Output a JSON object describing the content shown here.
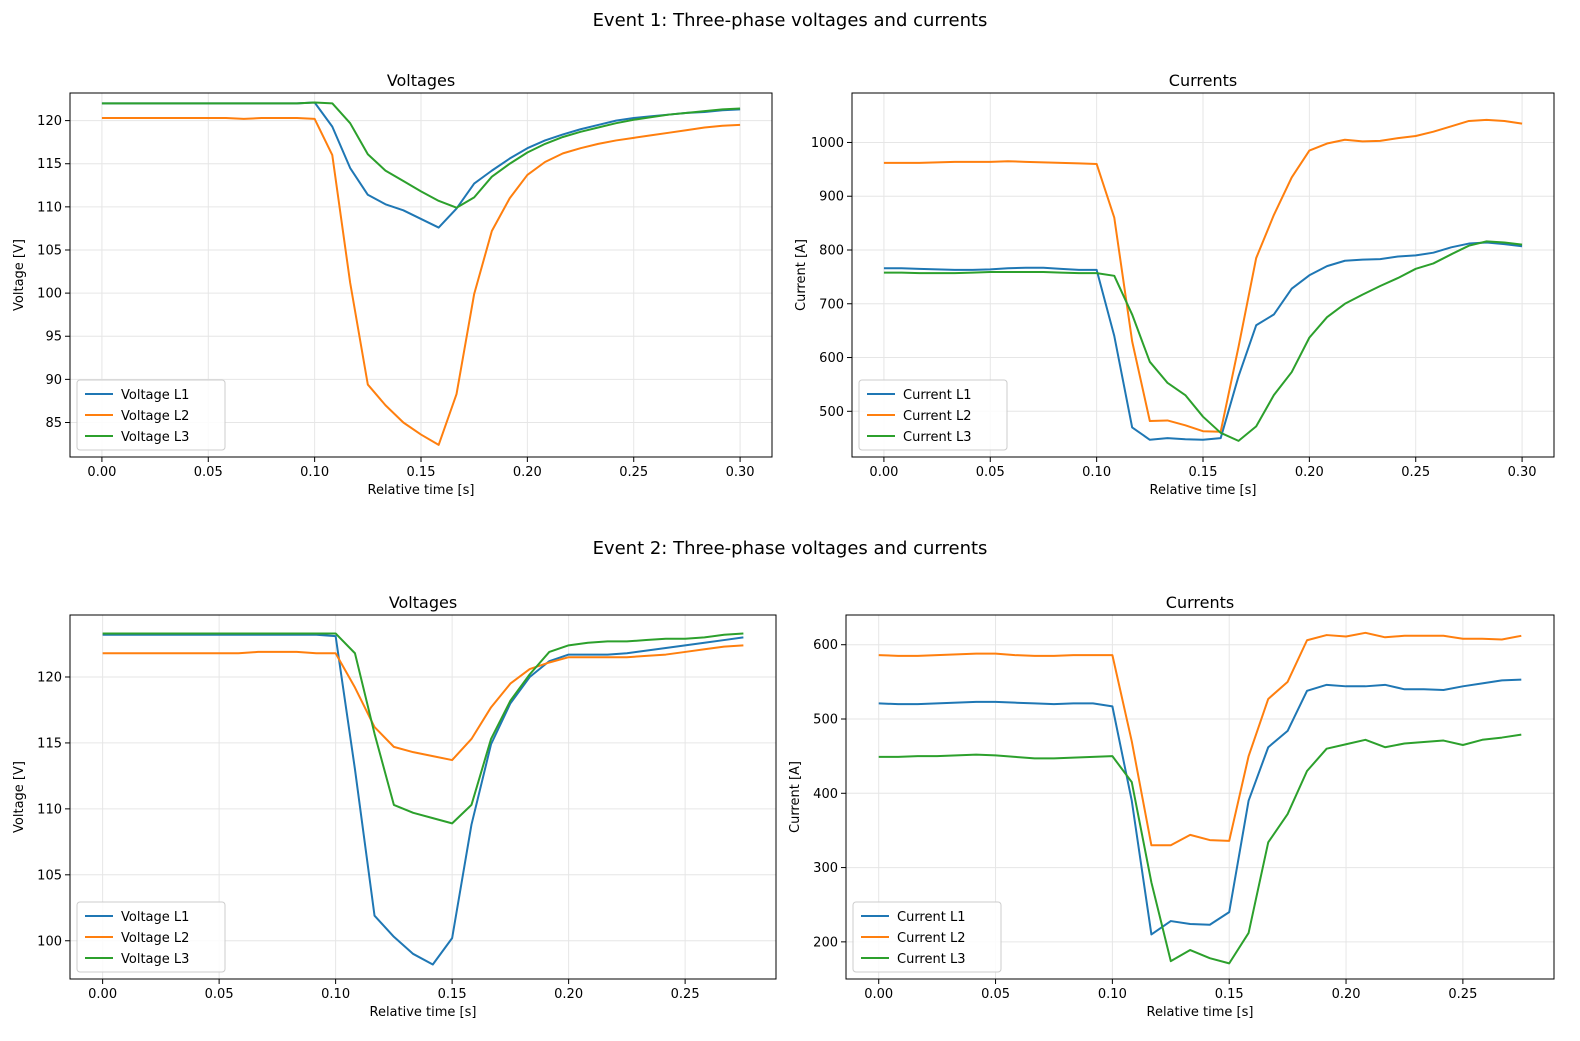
{
  "figure": {
    "event1_title": "Event 1: Three-phase voltages and currents",
    "event2_title": "Event 2: Three-phase voltages and currents"
  },
  "colors": {
    "L1": "#1f77b4",
    "L2": "#ff7f0e",
    "L3": "#2ca02c"
  },
  "chart_data": [
    {
      "type": "line",
      "title": "Voltages",
      "xlabel": "Relative time [s]",
      "ylabel": "Voltage [V]",
      "xlim": [
        -0.015,
        0.315
      ],
      "ylim": [
        81,
        123.2
      ],
      "xticks": [
        0.0,
        0.05,
        0.1,
        0.15,
        0.2,
        0.25,
        0.3
      ],
      "xtick_labels": [
        "0.00",
        "0.05",
        "0.10",
        "0.15",
        "0.20",
        "0.25",
        "0.30"
      ],
      "yticks": [
        85,
        90,
        95,
        100,
        105,
        110,
        115,
        120
      ],
      "ytick_labels": [
        "85",
        "90",
        "95",
        "100",
        "105",
        "110",
        "115",
        "120"
      ],
      "grid": true,
      "legend": "lower-left",
      "x": [
        0.0,
        0.0083,
        0.0167,
        0.025,
        0.0333,
        0.0417,
        0.05,
        0.0583,
        0.0667,
        0.075,
        0.0833,
        0.0917,
        0.1,
        0.1083,
        0.1167,
        0.125,
        0.1333,
        0.1417,
        0.15,
        0.1583,
        0.1667,
        0.175,
        0.1833,
        0.1917,
        0.2,
        0.2083,
        0.2167,
        0.225,
        0.2333,
        0.2417,
        0.25,
        0.2583,
        0.2667,
        0.275,
        0.2833,
        0.2917,
        0.3
      ],
      "series": [
        {
          "name": "Voltage L1",
          "color": "#1f77b4",
          "values": [
            122.0,
            122.0,
            122.0,
            122.0,
            122.0,
            122.0,
            122.0,
            122.0,
            122.0,
            122.0,
            122.0,
            122.0,
            122.1,
            119.3,
            114.5,
            111.4,
            110.3,
            109.6,
            108.6,
            107.6,
            109.8,
            112.7,
            114.2,
            115.6,
            116.8,
            117.7,
            118.4,
            119.0,
            119.5,
            120.0,
            120.3,
            120.5,
            120.7,
            120.9,
            121.0,
            121.2,
            121.3
          ]
        },
        {
          "name": "Voltage L2",
          "color": "#ff7f0e",
          "values": [
            120.3,
            120.3,
            120.3,
            120.3,
            120.3,
            120.3,
            120.3,
            120.3,
            120.2,
            120.3,
            120.3,
            120.3,
            120.2,
            116.0,
            101.2,
            89.4,
            87.0,
            85.0,
            83.6,
            82.4,
            88.3,
            99.9,
            107.2,
            111.0,
            113.7,
            115.2,
            116.2,
            116.8,
            117.3,
            117.7,
            118.0,
            118.3,
            118.6,
            118.9,
            119.2,
            119.4,
            119.5
          ]
        },
        {
          "name": "Voltage L3",
          "color": "#2ca02c",
          "values": [
            122.0,
            122.0,
            122.0,
            122.0,
            122.0,
            122.0,
            122.0,
            122.0,
            122.0,
            122.0,
            122.0,
            122.0,
            122.1,
            122.0,
            119.7,
            116.1,
            114.2,
            113.0,
            111.8,
            110.7,
            109.9,
            111.1,
            113.5,
            115.0,
            116.3,
            117.3,
            118.1,
            118.7,
            119.2,
            119.7,
            120.1,
            120.4,
            120.7,
            120.9,
            121.1,
            121.3,
            121.4
          ]
        }
      ]
    },
    {
      "type": "line",
      "title": "Currents",
      "xlabel": "Relative time [s]",
      "ylabel": "Current [A]",
      "xlim": [
        -0.015,
        0.315
      ],
      "ylim": [
        415,
        1092
      ],
      "xticks": [
        0.0,
        0.05,
        0.1,
        0.15,
        0.2,
        0.25,
        0.3
      ],
      "xtick_labels": [
        "0.00",
        "0.05",
        "0.10",
        "0.15",
        "0.20",
        "0.25",
        "0.30"
      ],
      "yticks": [
        500,
        600,
        700,
        800,
        900,
        1000
      ],
      "ytick_labels": [
        "500",
        "600",
        "700",
        "800",
        "900",
        "1000"
      ],
      "grid": true,
      "legend": "lower-left",
      "x": [
        0.0,
        0.0083,
        0.0167,
        0.025,
        0.0333,
        0.0417,
        0.05,
        0.0583,
        0.0667,
        0.075,
        0.0833,
        0.0917,
        0.1,
        0.1083,
        0.1167,
        0.125,
        0.1333,
        0.1417,
        0.15,
        0.1583,
        0.1667,
        0.175,
        0.1833,
        0.1917,
        0.2,
        0.2083,
        0.2167,
        0.225,
        0.2333,
        0.2417,
        0.25,
        0.2583,
        0.2667,
        0.275,
        0.2833,
        0.2917,
        0.3
      ],
      "series": [
        {
          "name": "Current L1",
          "color": "#1f77b4",
          "values": [
            766,
            766,
            765,
            764,
            763,
            763,
            764,
            766,
            767,
            767,
            765,
            763,
            763,
            640,
            470,
            447,
            450,
            448,
            447,
            450,
            565,
            660,
            680,
            728,
            753,
            770,
            780,
            782,
            783,
            788,
            790,
            795,
            805,
            812,
            814,
            811,
            807
          ]
        },
        {
          "name": "Current L2",
          "color": "#ff7f0e",
          "values": [
            962,
            962,
            962,
            963,
            964,
            964,
            964,
            965,
            964,
            963,
            962,
            961,
            960,
            860,
            630,
            482,
            483,
            474,
            463,
            462,
            620,
            785,
            865,
            935,
            985,
            998,
            1005,
            1002,
            1003,
            1008,
            1012,
            1020,
            1030,
            1040,
            1042,
            1040,
            1035
          ]
        },
        {
          "name": "Current L3",
          "color": "#2ca02c",
          "values": [
            758,
            758,
            757,
            757,
            757,
            758,
            759,
            759,
            759,
            759,
            758,
            757,
            757,
            752,
            680,
            592,
            553,
            530,
            490,
            460,
            445,
            472,
            530,
            573,
            637,
            675,
            700,
            717,
            733,
            748,
            765,
            775,
            792,
            808,
            816,
            814,
            810
          ]
        }
      ]
    },
    {
      "type": "line",
      "title": "Voltages",
      "xlabel": "Relative time [s]",
      "ylabel": "Voltage [V]",
      "xlim": [
        -0.014,
        0.289
      ],
      "ylim": [
        97.1,
        124.7
      ],
      "xticks": [
        0.0,
        0.05,
        0.1,
        0.15,
        0.2,
        0.25
      ],
      "xtick_labels": [
        "0.00",
        "0.05",
        "0.10",
        "0.15",
        "0.20",
        "0.25"
      ],
      "yticks": [
        100,
        105,
        110,
        115,
        120
      ],
      "ytick_labels": [
        "100",
        "105",
        "110",
        "115",
        "120"
      ],
      "grid": true,
      "legend": "lower-left",
      "x": [
        0.0,
        0.0083,
        0.0167,
        0.025,
        0.0333,
        0.0417,
        0.05,
        0.0583,
        0.0667,
        0.075,
        0.0833,
        0.0917,
        0.1,
        0.1083,
        0.1167,
        0.125,
        0.1333,
        0.1417,
        0.15,
        0.1583,
        0.1667,
        0.175,
        0.1833,
        0.1917,
        0.2,
        0.2083,
        0.2167,
        0.225,
        0.2333,
        0.2417,
        0.25,
        0.2583,
        0.2667,
        0.275
      ],
      "series": [
        {
          "name": "Voltage L1",
          "color": "#1f77b4",
          "values": [
            123.2,
            123.2,
            123.2,
            123.2,
            123.2,
            123.2,
            123.2,
            123.2,
            123.2,
            123.2,
            123.2,
            123.2,
            123.1,
            113.0,
            101.9,
            100.3,
            99.0,
            98.2,
            100.2,
            108.8,
            114.9,
            118.0,
            120.0,
            121.2,
            121.7,
            121.7,
            121.7,
            121.8,
            122.0,
            122.2,
            122.4,
            122.6,
            122.8,
            123.0
          ]
        },
        {
          "name": "Voltage L2",
          "color": "#ff7f0e",
          "values": [
            121.8,
            121.8,
            121.8,
            121.8,
            121.8,
            121.8,
            121.8,
            121.8,
            121.9,
            121.9,
            121.9,
            121.8,
            121.8,
            119.2,
            116.2,
            114.7,
            114.3,
            114.0,
            113.7,
            115.3,
            117.7,
            119.5,
            120.6,
            121.1,
            121.5,
            121.5,
            121.5,
            121.5,
            121.6,
            121.7,
            121.9,
            122.1,
            122.3,
            122.4
          ]
        },
        {
          "name": "Voltage L3",
          "color": "#2ca02c",
          "values": [
            123.3,
            123.3,
            123.3,
            123.3,
            123.3,
            123.3,
            123.3,
            123.3,
            123.3,
            123.3,
            123.3,
            123.3,
            123.3,
            121.8,
            115.7,
            110.3,
            109.7,
            109.3,
            108.9,
            110.3,
            115.3,
            118.2,
            120.2,
            121.9,
            122.4,
            122.6,
            122.7,
            122.7,
            122.8,
            122.9,
            122.9,
            123.0,
            123.2,
            123.3
          ]
        }
      ]
    },
    {
      "type": "line",
      "title": "Currents",
      "xlabel": "Relative time [s]",
      "ylabel": "Current [A]",
      "xlim": [
        -0.014,
        0.289
      ],
      "ylim": [
        150,
        640
      ],
      "xticks": [
        0.0,
        0.05,
        0.1,
        0.15,
        0.2,
        0.25
      ],
      "xtick_labels": [
        "0.00",
        "0.05",
        "0.10",
        "0.15",
        "0.20",
        "0.25"
      ],
      "yticks": [
        200,
        300,
        400,
        500,
        600
      ],
      "ytick_labels": [
        "200",
        "300",
        "400",
        "500",
        "600"
      ],
      "grid": true,
      "legend": "lower-left",
      "x": [
        0.0,
        0.0083,
        0.0167,
        0.025,
        0.0333,
        0.0417,
        0.05,
        0.0583,
        0.0667,
        0.075,
        0.0833,
        0.0917,
        0.1,
        0.1083,
        0.1167,
        0.125,
        0.1333,
        0.1417,
        0.15,
        0.1583,
        0.1667,
        0.175,
        0.1833,
        0.1917,
        0.2,
        0.2083,
        0.2167,
        0.225,
        0.2333,
        0.2417,
        0.25,
        0.2583,
        0.2667,
        0.275
      ],
      "series": [
        {
          "name": "Current L1",
          "color": "#1f77b4",
          "values": [
            521,
            520,
            520,
            521,
            522,
            523,
            523,
            522,
            521,
            520,
            521,
            521,
            517,
            390,
            210,
            228,
            224,
            223,
            240,
            390,
            462,
            484,
            538,
            546,
            544,
            544,
            546,
            540,
            540,
            539,
            544,
            548,
            552,
            553
          ]
        },
        {
          "name": "Current L2",
          "color": "#ff7f0e",
          "values": [
            586,
            585,
            585,
            586,
            587,
            588,
            588,
            586,
            585,
            585,
            586,
            586,
            586,
            470,
            330,
            330,
            344,
            337,
            336,
            450,
            527,
            550,
            606,
            613,
            611,
            616,
            610,
            612,
            612,
            612,
            608,
            608,
            607,
            612
          ]
        },
        {
          "name": "Current L3",
          "color": "#2ca02c",
          "values": [
            449,
            449,
            450,
            450,
            451,
            452,
            451,
            449,
            447,
            447,
            448,
            449,
            450,
            415,
            280,
            174,
            189,
            178,
            171,
            212,
            334,
            372,
            430,
            460,
            466,
            472,
            462,
            467,
            469,
            471,
            465,
            472,
            475,
            479
          ]
        }
      ]
    }
  ]
}
